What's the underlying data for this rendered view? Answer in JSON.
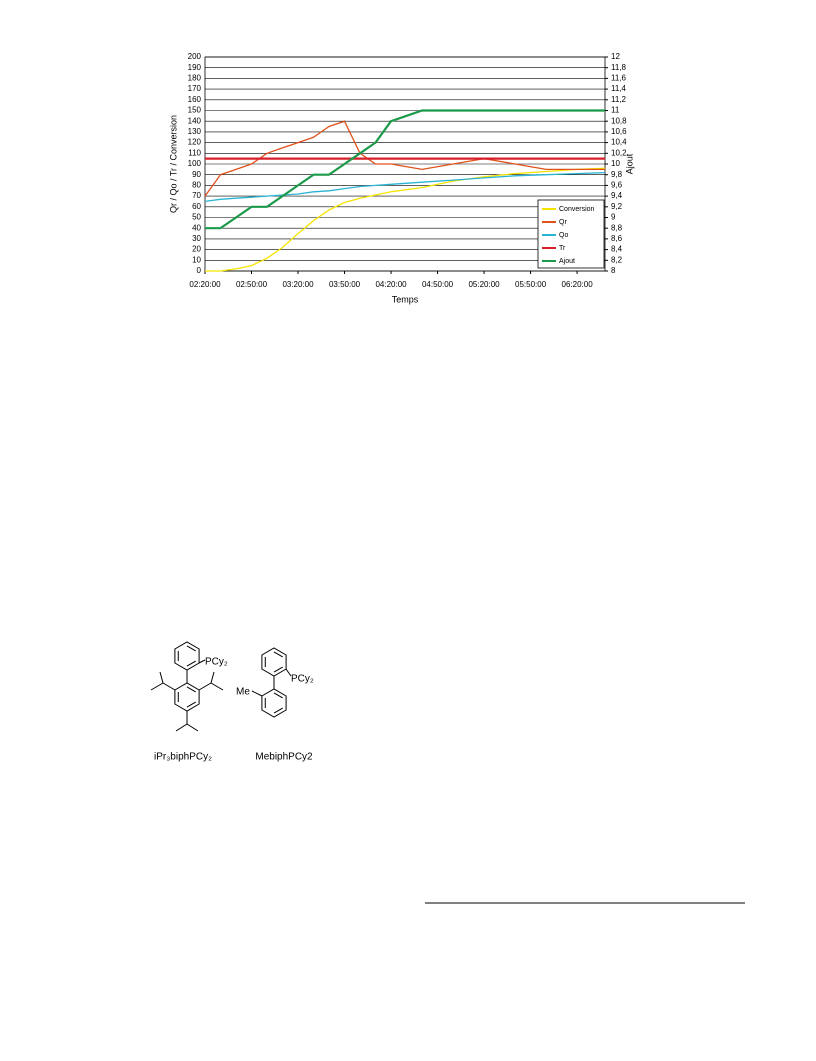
{
  "chart_data": {
    "type": "line",
    "xlabel": "Temps",
    "ylabel": "Qr / Qo / Tr / Conversion",
    "y2label": "Ajout",
    "xlim": [
      0,
      258
    ],
    "xticks": [
      {
        "value": 0,
        "label": "02:20:00"
      },
      {
        "value": 30,
        "label": "02:50:00"
      },
      {
        "value": 60,
        "label": "03:20:00"
      },
      {
        "value": 90,
        "label": "03:50:00"
      },
      {
        "value": 120,
        "label": "04:20:00"
      },
      {
        "value": 150,
        "label": "04:50:00"
      },
      {
        "value": 180,
        "label": "05:20:00"
      },
      {
        "value": 210,
        "label": "05:50:00"
      },
      {
        "value": 240,
        "label": "06:20:00"
      }
    ],
    "ylim": [
      0,
      200
    ],
    "yticks": [
      0,
      10,
      20,
      30,
      40,
      50,
      60,
      70,
      80,
      90,
      100,
      110,
      120,
      130,
      140,
      150,
      160,
      170,
      180,
      190,
      200
    ],
    "y2lim": [
      8,
      12
    ],
    "y2ticks": [
      8,
      {
        "value": 8.2,
        "label": "8,2"
      },
      {
        "value": 8.4,
        "label": "8,4"
      },
      {
        "value": 8.6,
        "label": "8,6"
      },
      {
        "value": 8.8,
        "label": "8,8"
      },
      9,
      {
        "value": 9.2,
        "label": "9,2"
      },
      {
        "value": 9.4,
        "label": "9,4"
      },
      {
        "value": 9.6,
        "label": "9,6"
      },
      {
        "value": 9.8,
        "label": "9,8"
      },
      10,
      {
        "value": 10.2,
        "label": "10,2"
      },
      {
        "value": 10.4,
        "label": "10,4"
      },
      {
        "value": 10.6,
        "label": "10,6"
      },
      {
        "value": 10.8,
        "label": "10,8"
      },
      11,
      {
        "value": 11.2,
        "label": "11,2"
      },
      {
        "value": 11.4,
        "label": "11,4"
      },
      {
        "value": 11.6,
        "label": "11,6"
      },
      {
        "value": 11.8,
        "label": "11,8"
      },
      12
    ],
    "grid": true,
    "legend": "lower right",
    "x": [
      0,
      10,
      20,
      30,
      40,
      50,
      60,
      70,
      80,
      90,
      100,
      110,
      120,
      140,
      160,
      180,
      200,
      220,
      240,
      258
    ],
    "series": [
      {
        "name": "Conversion",
        "color": "#f5e400",
        "values": [
          0,
          0,
          2,
          5,
          12,
          22,
          35,
          47,
          57,
          64,
          68,
          71,
          74,
          78,
          84,
          88,
          91,
          93,
          95,
          96
        ]
      },
      {
        "name": "Qr",
        "color": "#e0521c",
        "values": [
          70,
          90,
          95,
          100,
          110,
          115,
          120,
          125,
          135,
          140,
          110,
          100,
          100,
          95,
          100,
          105,
          100,
          95,
          95,
          95
        ]
      },
      {
        "name": "Qo",
        "color": "#2ab4d4",
        "values": [
          65,
          67,
          68,
          69,
          70,
          71,
          72,
          74,
          75,
          77,
          79,
          80,
          81,
          83,
          85,
          87,
          89,
          90,
          91,
          92
        ]
      },
      {
        "name": "Tr",
        "color": "#d8202a",
        "values": [
          105,
          105,
          105,
          105,
          105,
          105,
          105,
          105,
          105,
          105,
          105,
          105,
          105,
          105,
          105,
          105,
          105,
          105,
          105,
          105
        ]
      },
      {
        "name": "Ajout",
        "color": "#1a9a4a",
        "axis": "y2",
        "values": [
          8.8,
          8.8,
          9.0,
          9.2,
          9.2,
          9.4,
          9.6,
          9.8,
          9.8,
          10.0,
          10.2,
          10.4,
          10.8,
          11,
          11,
          11,
          11,
          11,
          11,
          11
        ]
      }
    ]
  },
  "structures": [
    {
      "substituents": [
        "PCy₂"
      ],
      "label": "iPr₃biphPCy₂"
    },
    {
      "substituents": [
        "PCy₂",
        "Me"
      ],
      "label": "MebiphPCy2"
    }
  ]
}
